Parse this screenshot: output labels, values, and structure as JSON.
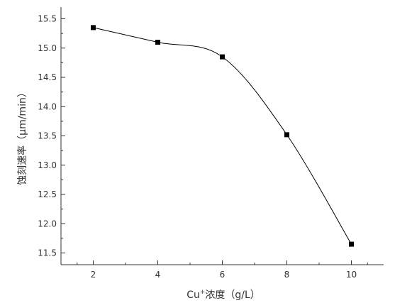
{
  "chart_data": {
    "type": "line",
    "title": "",
    "xlabel_prefix": "Cu",
    "xlabel_sup": "+",
    "xlabel_suffix": "浓度（g/L）",
    "ylabel": "蚀刻速率（μm/min）",
    "xlim": [
      1,
      11
    ],
    "ylim": [
      11.3,
      15.7
    ],
    "x_ticks": [
      2,
      4,
      6,
      8,
      10
    ],
    "y_ticks": [
      11.5,
      12.0,
      12.5,
      13.0,
      13.5,
      14.0,
      14.5,
      15.0,
      15.5
    ],
    "x_tick_labels": [
      "2",
      "4",
      "6",
      "8",
      "10"
    ],
    "y_tick_labels": [
      "11.5",
      "12.0",
      "12.5",
      "13.0",
      "13.5",
      "14.0",
      "14.5",
      "15.0",
      "15.5"
    ],
    "grid": false,
    "legend": "none",
    "series": [
      {
        "x": [
          2,
          4,
          6,
          8,
          10
        ],
        "values": [
          15.35,
          15.1,
          14.85,
          13.52,
          11.65
        ]
      }
    ],
    "line_color": "#000000",
    "marker": "square"
  }
}
